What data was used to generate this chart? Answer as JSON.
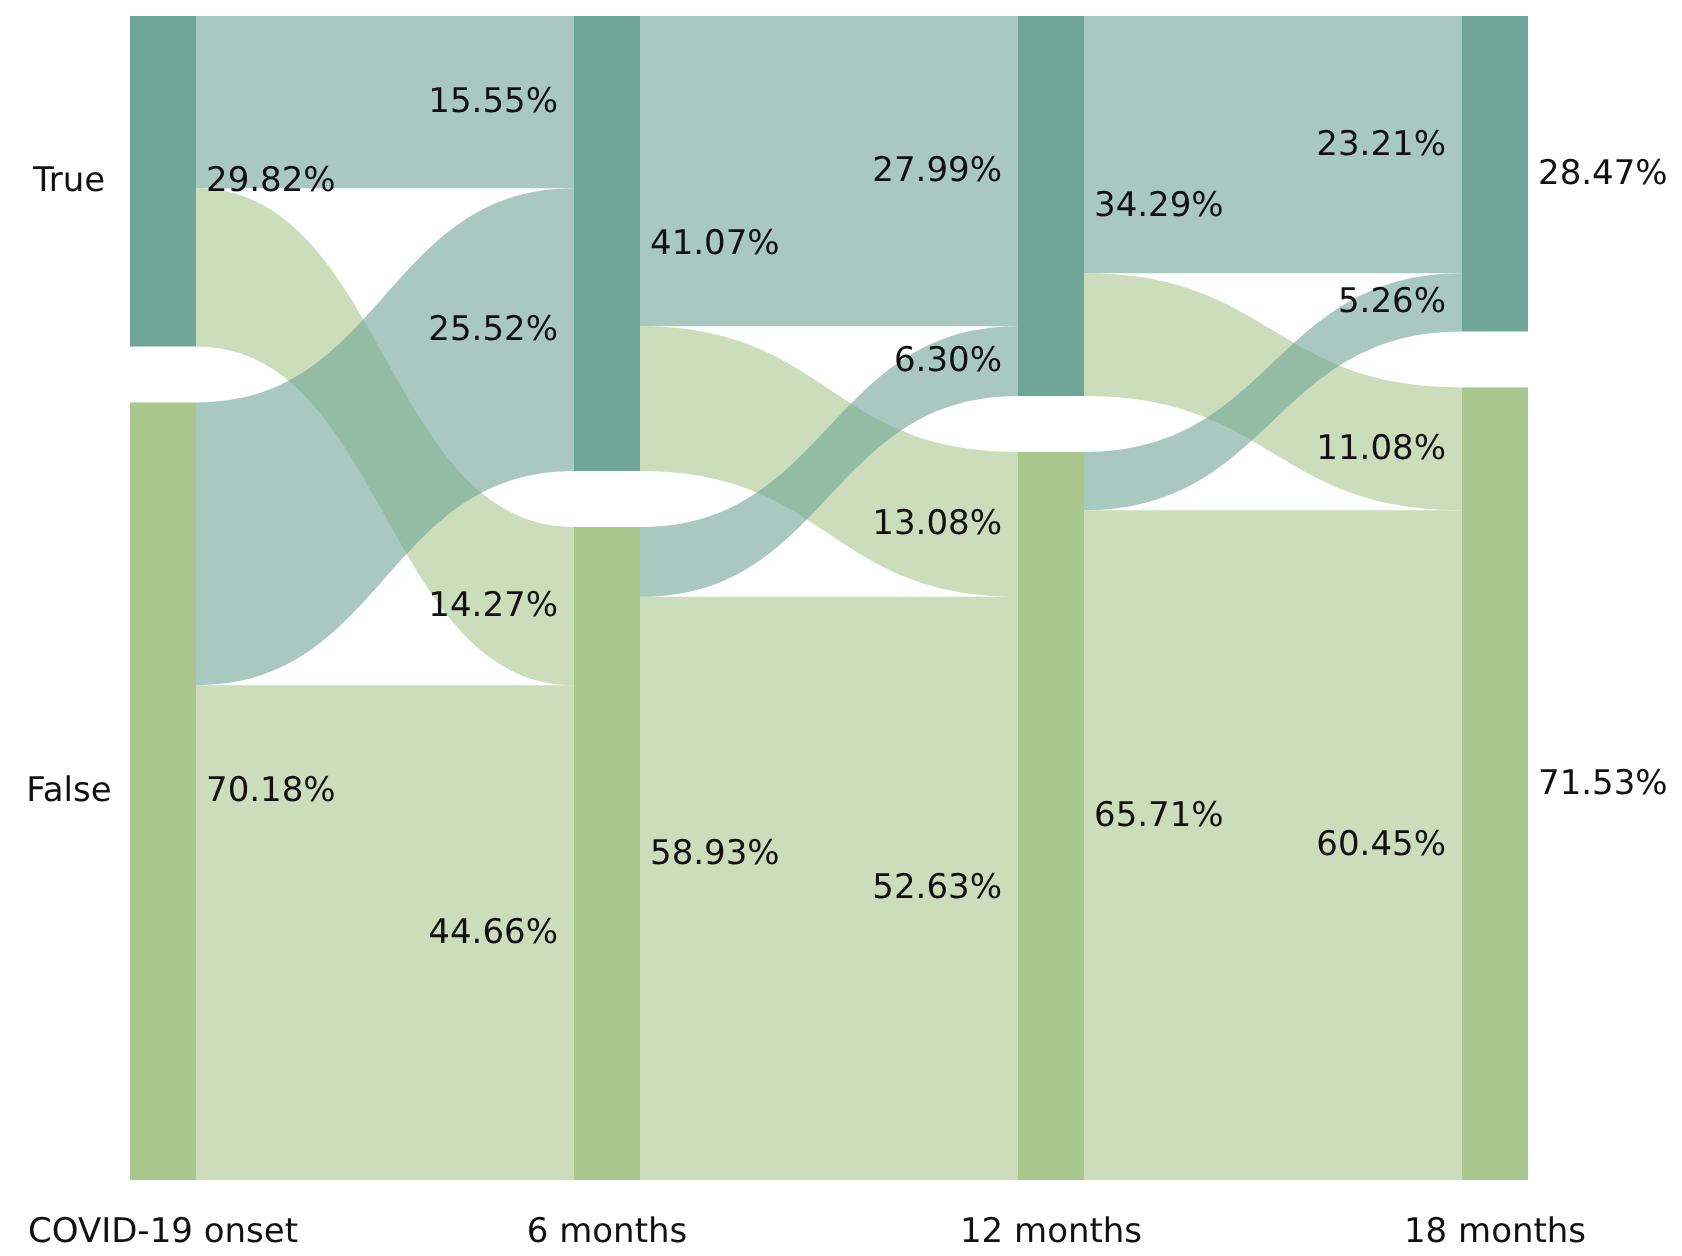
{
  "chart_data": {
    "type": "other",
    "categories": [
      "COVID-19 onset",
      "6 months",
      "12 months",
      "18 months"
    ],
    "y_categories": [
      "True",
      "False"
    ],
    "series": [
      {
        "color": "#6fa596",
        "values": [
          29.82,
          41.07,
          34.29,
          28.47
        ],
        "value_labels": [
          "29.82%",
          "41.07%",
          "34.29%",
          "28.47%"
        ]
      },
      {
        "color": "#a9c68c",
        "values": [
          70.18,
          58.93,
          65.71,
          71.53
        ],
        "value_labels": [
          "70.18%",
          "58.93%",
          "65.71%",
          "71.53%"
        ]
      },
      {
        "color": "#6fa596",
        "values": [
          null,
          15.55,
          27.99,
          23.21
        ],
        "value_labels": [
          null,
          "15.55%",
          "27.99%",
          "23.21%"
        ]
      },
      {
        "color": "#a9c68c",
        "values": [
          null,
          14.27,
          13.08,
          11.08
        ],
        "value_labels": [
          null,
          "14.27%",
          "13.08%",
          "11.08%"
        ]
      },
      {
        "color": "#6fa596",
        "values": [
          null,
          25.52,
          6.3,
          5.26
        ],
        "value_labels": [
          null,
          "25.52%",
          "6.30%",
          "5.26%"
        ]
      },
      {
        "color": "#a9c68c",
        "values": [
          null,
          44.66,
          52.63,
          60.45
        ],
        "value_labels": [
          null,
          "44.66%",
          "52.63%",
          "60.45%"
        ]
      }
    ]
  }
}
